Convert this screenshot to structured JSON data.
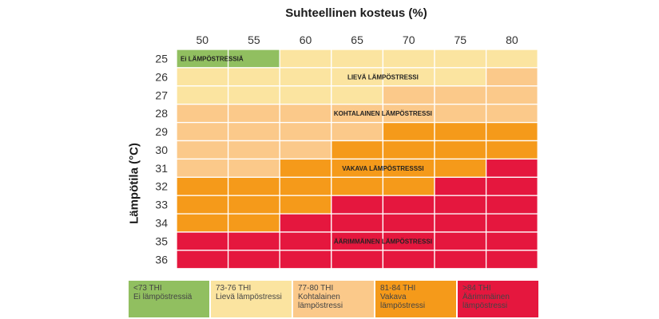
{
  "chart_data": {
    "type": "heatmap",
    "title": "Suhteellinen kosteus (%)",
    "xlabel": "Suhteellinen kosteus (%)",
    "ylabel": "Lämpötila (°C)",
    "x": [
      "50",
      "55",
      "60",
      "65",
      "70",
      "75",
      "80"
    ],
    "y": [
      "25",
      "26",
      "27",
      "28",
      "29",
      "30",
      "31",
      "32",
      "33",
      "34",
      "35",
      "36"
    ],
    "categories": [
      {
        "id": 0,
        "range": "<73 THI",
        "label": "Ei lämpöstressiä",
        "color": "#91bf60"
      },
      {
        "id": 1,
        "range": "73-76 THI",
        "label": "Lievä lämpöstressi",
        "color": "#fbe4a0"
      },
      {
        "id": 2,
        "range": "77-80 THI",
        "label": "Kohtalainen lämpöstressi",
        "color": "#fbc98a"
      },
      {
        "id": 3,
        "range": "81-84 THI",
        "label": "Vakava lämpöstressi",
        "color": "#f59a1a"
      },
      {
        "id": 4,
        "range": ">84 THI",
        "label": "Äärimmäinen lämpöstressi",
        "color": "#e5173e"
      }
    ],
    "cells": [
      [
        0,
        0,
        1,
        1,
        1,
        1,
        1
      ],
      [
        1,
        1,
        1,
        1,
        1,
        1,
        2
      ],
      [
        1,
        1,
        1,
        1,
        2,
        2,
        2
      ],
      [
        2,
        2,
        2,
        2,
        2,
        2,
        2
      ],
      [
        2,
        2,
        2,
        2,
        3,
        3,
        3
      ],
      [
        2,
        2,
        2,
        3,
        3,
        3,
        3
      ],
      [
        2,
        2,
        3,
        3,
        3,
        3,
        4
      ],
      [
        3,
        3,
        3,
        3,
        3,
        4,
        4
      ],
      [
        3,
        3,
        3,
        4,
        4,
        4,
        4
      ],
      [
        3,
        3,
        4,
        4,
        4,
        4,
        4
      ],
      [
        4,
        4,
        4,
        4,
        4,
        4,
        4
      ],
      [
        4,
        4,
        4,
        4,
        4,
        4,
        4
      ]
    ],
    "zone_labels": [
      {
        "text": "Ei LÄMPÖSTRESSIÄ",
        "row": 0,
        "col": 0
      },
      {
        "text": "LIEVÄ LÄMPÖSTRESSI",
        "row": 1,
        "col": 3.5
      },
      {
        "text": "KOHTALAINEN LÄMPÖSTRESSI",
        "row": 3,
        "col": 3.5
      },
      {
        "text": "VAKAVA LÄMPÖSTRESSSI",
        "row": 6,
        "col": 3.5
      },
      {
        "text": "ÄÄRIMMÄINEN LÄMPÖSTRESSI",
        "row": 10,
        "col": 3.5
      }
    ]
  }
}
